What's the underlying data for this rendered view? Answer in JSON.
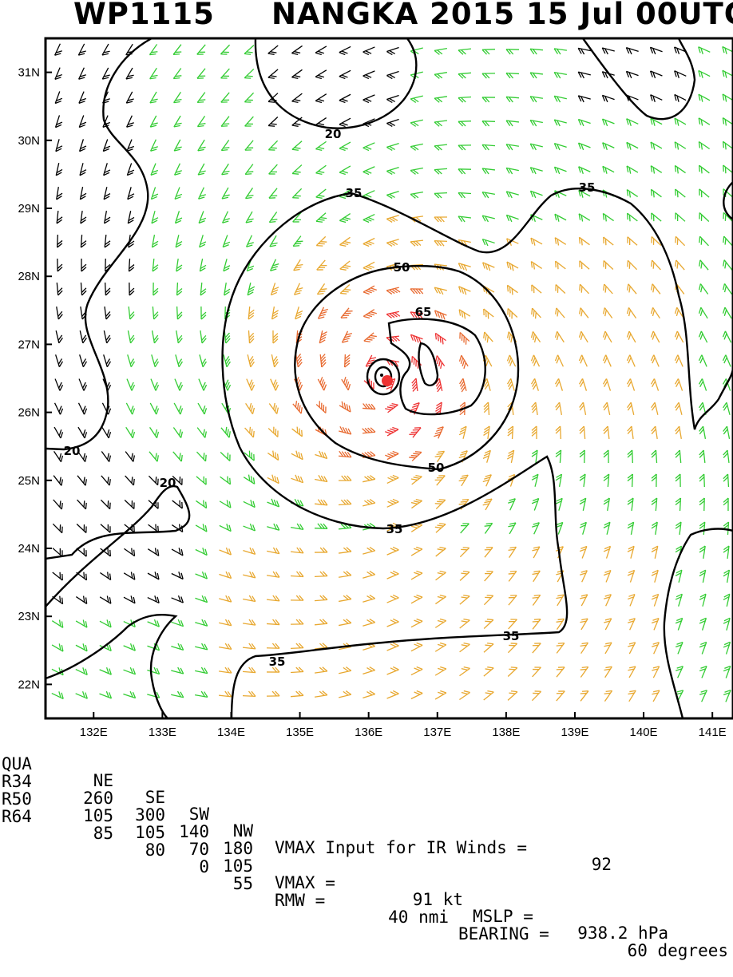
{
  "header": {
    "storm_id": "WP1115",
    "storm_desc": "NANGKA 2015 15 Jul 00UTC"
  },
  "map": {
    "lon_labels": [
      "132E",
      "133E",
      "134E",
      "135E",
      "136E",
      "137E",
      "138E",
      "139E",
      "140E",
      "141E"
    ],
    "lat_labels": [
      "31N",
      "30N",
      "29N",
      "28N",
      "27N",
      "26N",
      "25N",
      "24N",
      "23N",
      "22N"
    ],
    "lon_range": [
      131.3,
      141.3
    ],
    "lat_range": [
      21.5,
      31.5
    ],
    "contour_labels": [
      "20",
      "20",
      "20",
      "35",
      "35",
      "35",
      "35",
      "35",
      "50",
      "50",
      "65"
    ],
    "colors": {
      "below_34kt": "#000000",
      "kt34_49": "#33cc33",
      "kt50_63": "#e8a830",
      "kt64_plus": "#e86a30",
      "core": "#ee3333"
    },
    "center_marker": "storm-center-dot"
  },
  "info": {
    "quad_header": [
      "QUA",
      "NE",
      "SE",
      "SW",
      "NW"
    ],
    "rows": [
      {
        "label": "R34",
        "values": [
          "260",
          "300",
          "140",
          "180"
        ]
      },
      {
        "label": "R50",
        "values": [
          "105",
          "105",
          "70",
          "105"
        ]
      },
      {
        "label": "R64",
        "values": [
          "85",
          "80",
          "0",
          "55"
        ]
      }
    ],
    "vmax_input_text": "VMAX Input for IR Winds =",
    "vmax_input_value": "92",
    "vmax_text": "VMAX =",
    "vmax_value": "91 kt",
    "mslp_text": "MSLP =",
    "mslp_value": "938.2 hPa",
    "rmw_text": "RMW =",
    "rmw_value": "40 nmi",
    "bearing_text": "BEARING =",
    "bearing_value": "60 degrees"
  }
}
